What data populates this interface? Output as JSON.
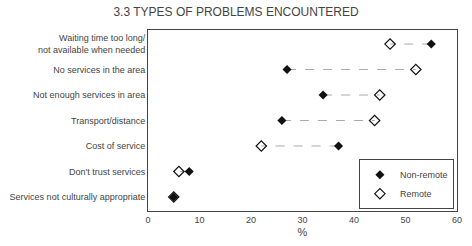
{
  "chart_data": {
    "type": "dumbbell",
    "title": "3.3 TYPES OF PROBLEMS ENCOUNTERED",
    "categories": [
      "Waiting time too long/\nnot available when needed",
      "No services in the area",
      "Not enough services in area",
      "Transport/distance",
      "Cost of service",
      "Don't trust services",
      "Services not culturally appropriate"
    ],
    "series": [
      {
        "name": "Non-remote",
        "color": "#111111",
        "marker": "diamond",
        "values": [
          55,
          27,
          34,
          26,
          37,
          8,
          5
        ]
      },
      {
        "name": "Remote",
        "color": "#111111",
        "marker": "diamond-open",
        "values": [
          47,
          52,
          45,
          44,
          22,
          6,
          5
        ]
      }
    ],
    "color": "#aaaaaa",
    "line_style": "dashed",
    "xlabel": "%",
    "xlim": [
      0,
      60
    ],
    "xticks": [
      0,
      10,
      20,
      30,
      40,
      50,
      60
    ],
    "legend": "lower right",
    "grid": false
  }
}
